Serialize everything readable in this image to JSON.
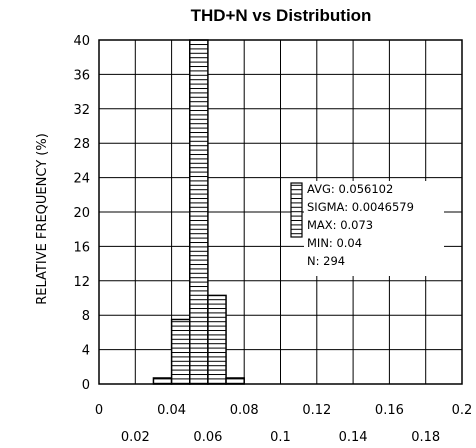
{
  "chart_data": {
    "type": "bar",
    "title": "THD+N vs Distribution",
    "xlabel": "",
    "ylabel": "RELATIVE FREQUENCY (%)",
    "xlim": [
      0,
      0.2
    ],
    "ylim": [
      0,
      40
    ],
    "x_ticks_top": [
      "0",
      "0.04",
      "0.08",
      "0.12",
      "0.16",
      "0.2"
    ],
    "x_ticks_bottom": [
      "0.02",
      "0.06",
      "0.1",
      "0.14",
      "0.18"
    ],
    "y_ticks": [
      "0",
      "4",
      "8",
      "12",
      "16",
      "20",
      "24",
      "28",
      "32",
      "36",
      "40"
    ],
    "grid": true,
    "bins": [
      {
        "x0": 0.03,
        "x1": 0.04,
        "value": 0.7
      },
      {
        "x0": 0.04,
        "x1": 0.05,
        "value": 7.5
      },
      {
        "x0": 0.05,
        "x1": 0.06,
        "value": 40
      },
      {
        "x0": 0.06,
        "x1": 0.07,
        "value": 10.3
      },
      {
        "x0": 0.07,
        "x1": 0.08,
        "value": 0.7
      }
    ],
    "stats": [
      {
        "label": "AVG",
        "value": "0.056102"
      },
      {
        "label": "SIGMA",
        "value": "0.0046579"
      },
      {
        "label": "MAX",
        "value": "0.073"
      },
      {
        "label": "MIN",
        "value": "0.04"
      },
      {
        "label": "N",
        "value": "294"
      }
    ]
  }
}
